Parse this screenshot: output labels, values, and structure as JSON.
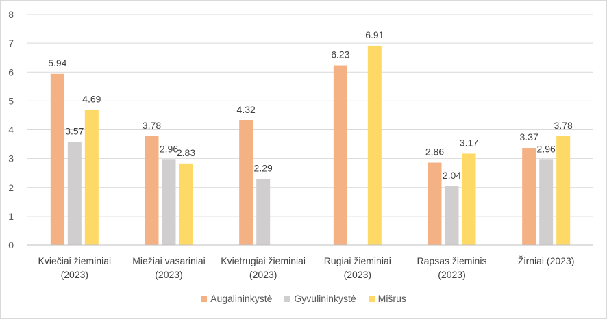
{
  "chart_data": {
    "type": "bar",
    "categories": [
      [
        "Kviečiai žieminiai",
        "(2023)"
      ],
      [
        "Miežiai vasariniai",
        "(2023)"
      ],
      [
        "Kvietrugiai žieminiai",
        "(2023)"
      ],
      [
        "Rugiai žieminiai",
        "(2023)"
      ],
      [
        "Rapsas žieminis",
        "(2023)"
      ],
      [
        "Žirniai (2023)"
      ]
    ],
    "series": [
      {
        "name": "Augalininkystė",
        "color": "#f4b183",
        "values": [
          5.94,
          3.78,
          4.32,
          6.23,
          2.86,
          3.37
        ]
      },
      {
        "name": "Gyvulininkystė",
        "color": "#d0cece",
        "values": [
          3.57,
          2.96,
          2.29,
          null,
          2.04,
          2.96
        ]
      },
      {
        "name": "Mišrus",
        "color": "#ffd966",
        "values": [
          4.69,
          2.83,
          null,
          6.91,
          3.17,
          3.78
        ]
      }
    ],
    "value_labels": [
      [
        "5.94",
        "3.78",
        "4.32",
        "6.23",
        "2.86",
        "3.37"
      ],
      [
        "3.57",
        "2.96",
        "2.29",
        "",
        "2.04",
        "2.96"
      ],
      [
        "4.69",
        "2.83",
        "",
        "6.91",
        "3.17",
        "3.78"
      ]
    ],
    "yticks": [
      "0",
      "1",
      "2",
      "3",
      "4",
      "5",
      "6",
      "7",
      "8"
    ],
    "ylim": [
      0,
      8
    ],
    "grid": true,
    "legend_position": "bottom",
    "title": "",
    "xlabel": "",
    "ylabel": ""
  }
}
